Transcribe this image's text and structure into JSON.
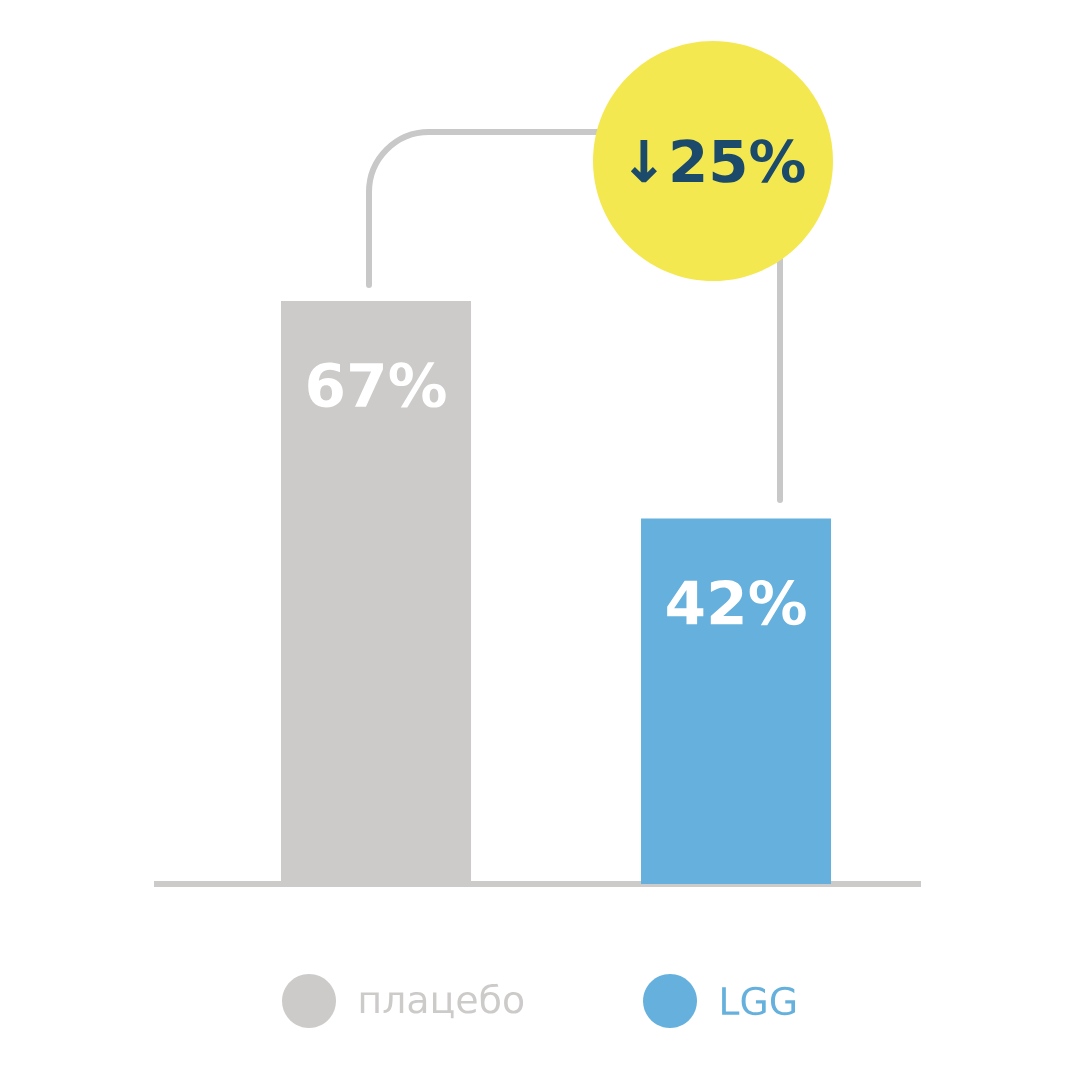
{
  "chart_data": {
    "type": "bar",
    "categories": [
      "плацебо",
      "LGG"
    ],
    "values": [
      67,
      42
    ],
    "colors": [
      "#cccbc9",
      "#65b0dd"
    ],
    "value_labels": [
      "67%",
      "42%"
    ],
    "annotations": [
      "↓25%"
    ]
  }
}
